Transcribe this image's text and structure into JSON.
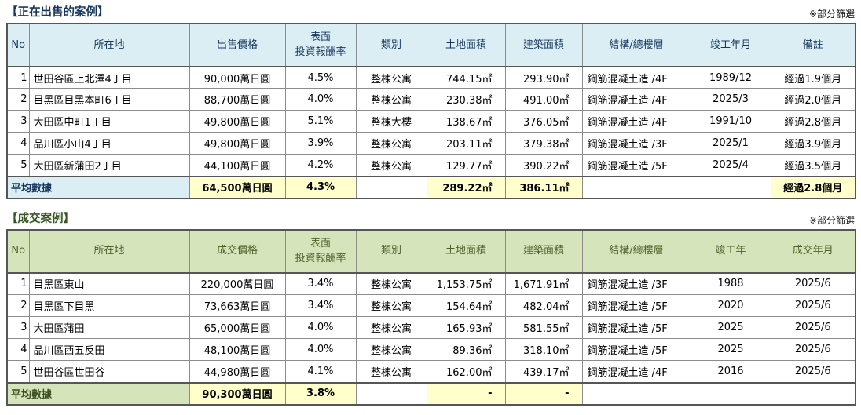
{
  "tables": [
    {
      "title": "【正在出售的案例】",
      "filter_note": "※部分篩選",
      "columns": [
        "No",
        "所在地",
        "出售價格",
        "表面\n投資報酬率",
        "類別",
        "土地面積",
        "建築面積",
        "結構/總樓層",
        "竣工年月",
        "備註"
      ],
      "rows": [
        [
          "1",
          "世田谷區上北澤4丁目",
          "90,000萬日圓",
          "4.5%",
          "整棟公寓",
          "744.15㎡",
          "293.90㎡",
          "鋼筋混凝土造 /4F",
          "1989/12",
          "經過1.9個月"
        ],
        [
          "2",
          "目黑區目黑本町6丁目",
          "88,700萬日圓",
          "4.0%",
          "整棟公寓",
          "230.38㎡",
          "491.00㎡",
          "鋼筋混凝土造 /4F",
          "2025/3",
          "經過2.0個月"
        ],
        [
          "3",
          "大田區中町1丁目",
          "49,800萬日圓",
          "5.1%",
          "整棟大樓",
          "138.67㎡",
          "376.05㎡",
          "鋼筋混凝土造 /4F",
          "1991/10",
          "經過2.8個月"
        ],
        [
          "4",
          "品川區小山4丁目",
          "49,800萬日圓",
          "3.9%",
          "整棟公寓",
          "203.11㎡",
          "379.38㎡",
          "鋼筋混凝土造 /3F",
          "2025/1",
          "經過3.9個月"
        ],
        [
          "5",
          "大田區新蒲田2丁目",
          "44,100萬日圓",
          "4.2%",
          "整棟公寓",
          "129.77㎡",
          "390.22㎡",
          "鋼筋混凝土造 /5F",
          "2025/4",
          "經過3.5個月"
        ]
      ],
      "average": {
        "label": "平均數據",
        "values": [
          "64,500萬日圓",
          "4.3%",
          "",
          "289.22㎡",
          "386.11㎡",
          "",
          "",
          "經過2.8個月"
        ]
      }
    },
    {
      "title": "【成交案例】",
      "filter_note": "※部分篩選",
      "columns": [
        "No",
        "所在地",
        "成交價格",
        "表面\n投資報酬率",
        "類別",
        "土地面積",
        "建築面積",
        "結構/總樓層",
        "竣工年",
        "成交年月"
      ],
      "rows": [
        [
          "1",
          "目黑區東山",
          "220,000萬日圓",
          "3.4%",
          "整棟公寓",
          "1,153.75㎡",
          "1,671.91㎡",
          "鋼筋混凝土造 /3F",
          "1988",
          "2025/6"
        ],
        [
          "2",
          "目黑區下目黑",
          "73,663萬日圓",
          "3.4%",
          "整棟公寓",
          "154.64㎡",
          "482.04㎡",
          "鋼筋混凝土造 /5F",
          "2020",
          "2025/6"
        ],
        [
          "3",
          "大田區蒲田",
          "65,000萬日圓",
          "4.0%",
          "整棟公寓",
          "165.93㎡",
          "581.55㎡",
          "鋼筋混凝土造 /5F",
          "2025",
          "2025/6"
        ],
        [
          "4",
          "品川區西五反田",
          "48,100萬日圓",
          "4.0%",
          "整棟公寓",
          "89.36㎡",
          "318.10㎡",
          "鋼筋混凝土造 /5F",
          "2025",
          "2025/6"
        ],
        [
          "5",
          "世田谷區世田谷",
          "44,980萬日圓",
          "4.1%",
          "整棟公寓",
          "162.00㎡",
          "439.17㎡",
          "鋼筋混凝土造 /4F",
          "2016",
          "2025/6"
        ]
      ],
      "average": {
        "label": "平均數據",
        "values": [
          "90,300萬日圓",
          "3.8%",
          "",
          "-",
          "-",
          "",
          "",
          ""
        ]
      }
    }
  ],
  "colors": {
    "blue_header_bg": "#daeef3",
    "blue_header_text": "#17375e",
    "green_header_bg": "#d6e4bc",
    "green_header_text": "#4f6228",
    "average_highlight": "#ffffcc"
  }
}
